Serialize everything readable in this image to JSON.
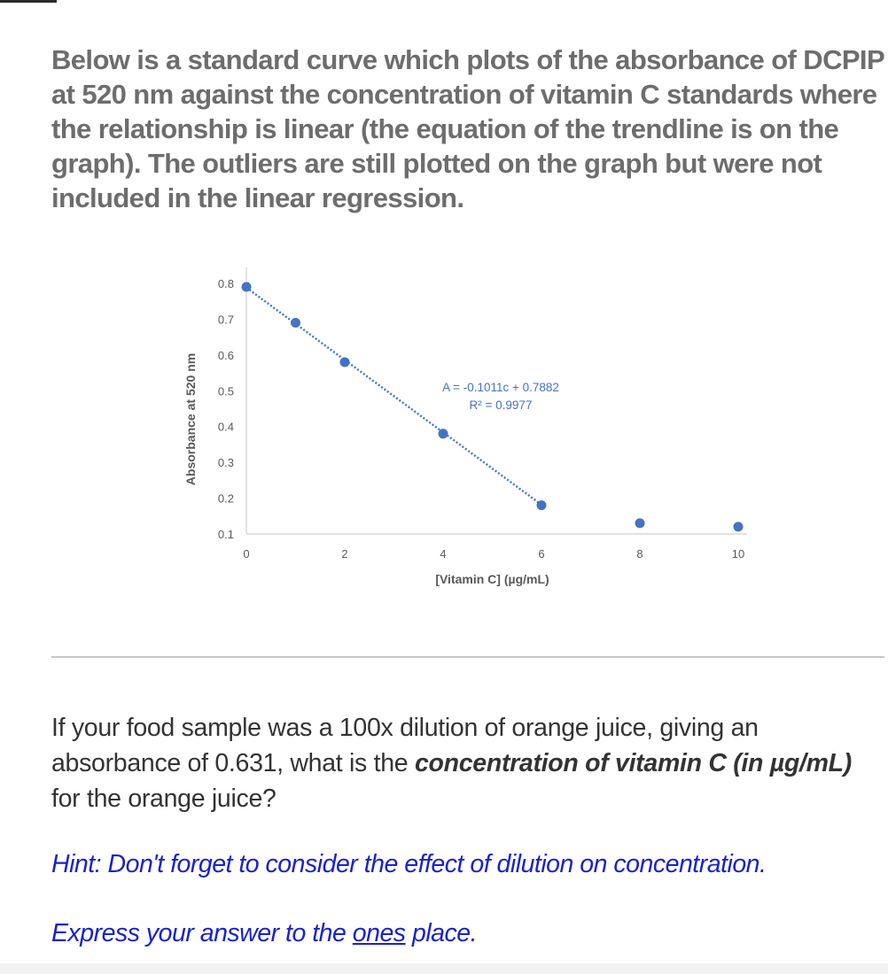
{
  "intro_text": "Below is a standard curve which plots of the absorbance of DCPIP at 520 nm against the concentration of vitamin C standards where the relationship is linear (the equation of the trendline is on the graph). The outliers are still plotted on the graph but were not included in the linear regression.",
  "chart_data": {
    "type": "scatter",
    "xlabel": "[Vitamin C] (µg/mL)",
    "ylabel": "Absorbance at 520 nm",
    "xlim": [
      0,
      10
    ],
    "ylim": [
      0.1,
      0.8
    ],
    "x_ticks": [
      "0",
      "2",
      "4",
      "6",
      "8",
      "10"
    ],
    "y_ticks": [
      "0.8",
      "0.7",
      "0.6",
      "0.5",
      "0.4",
      "0.3",
      "0.2",
      "0.1"
    ],
    "grid": false,
    "series": [
      {
        "color": "#4472c4",
        "points": [
          {
            "x": 0,
            "y": 0.79
          },
          {
            "x": 1,
            "y": 0.69
          },
          {
            "x": 2,
            "y": 0.58
          },
          {
            "x": 4,
            "y": 0.38
          },
          {
            "x": 6,
            "y": 0.18
          },
          {
            "x": 8,
            "y": 0.13
          },
          {
            "x": 10,
            "y": 0.12
          }
        ]
      }
    ],
    "trendline": {
      "style": "dotted",
      "color": "#4472c4",
      "x_range": [
        0,
        6
      ],
      "slope": -0.1011,
      "intercept": 0.7882,
      "equation_label": "A = -0.1011c + 0.7882",
      "r2_label": "R² = 0.9977"
    }
  },
  "question": {
    "before": "If your food sample was a 100x dilution of orange juice, giving an absorbance of 0.631, what is the ",
    "emphasis": "concentration of vitamin C (in µg/mL)",
    "after": " for the orange juice?"
  },
  "hint": "Hint: Don't forget to consider the effect of dilution on concentration.",
  "express": {
    "before": "Express your answer to the ",
    "underlined": "ones",
    "after": " place."
  },
  "colors": {
    "intro_text": "#6d6d6d",
    "question_text": "#333333",
    "hint_text": "#1a22c8",
    "data_point": "#4472c4"
  }
}
